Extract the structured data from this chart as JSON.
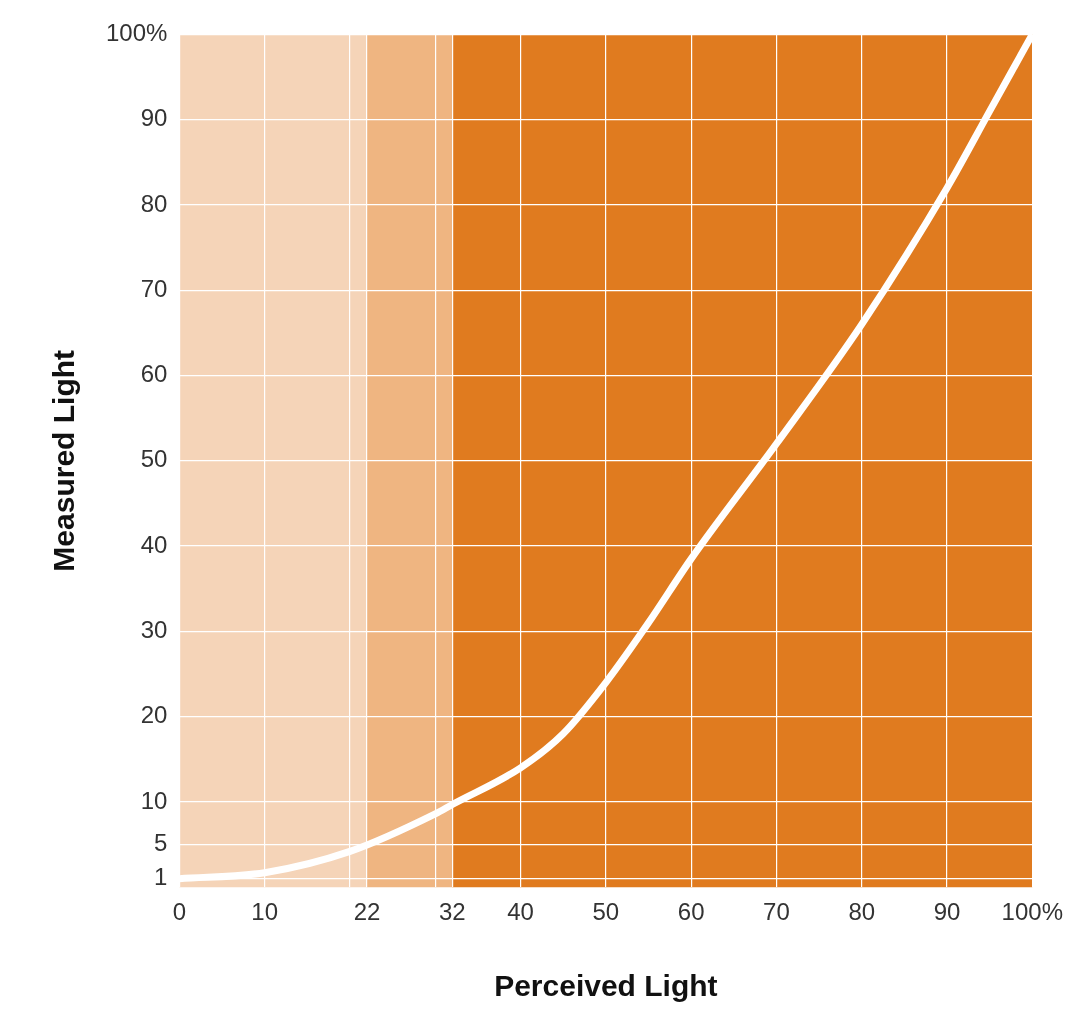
{
  "chart_data": {
    "type": "line",
    "xlabel": "Perceived Light",
    "ylabel": "Measured Light",
    "x": [
      0,
      10,
      20,
      30,
      32,
      40,
      45,
      50,
      55,
      60,
      70,
      80,
      90,
      95,
      100
    ],
    "series": [
      {
        "color": "#ffffff",
        "values": [
          1,
          1.7,
          4.2,
          8.6,
          9.7,
          14,
          18,
          24,
          31,
          38.5,
          52,
          66,
          82,
          91,
          100
        ]
      }
    ],
    "xlim": [
      0,
      100
    ],
    "ylim": [
      0,
      100
    ],
    "xticks": [
      0,
      10,
      {
        "value": 20,
        "label": null
      },
      22,
      {
        "value": 30,
        "label": null
      },
      32,
      40,
      50,
      60,
      70,
      80,
      90,
      {
        "value": 100,
        "label": "100%"
      }
    ],
    "yticks": [
      1,
      5,
      10,
      20,
      30,
      40,
      50,
      60,
      70,
      80,
      90,
      {
        "value": 100,
        "label": "100%"
      }
    ],
    "bands": [
      {
        "axis": "x",
        "from": 0,
        "to": 22,
        "color": "#f5d4b8"
      },
      {
        "axis": "x",
        "from": 22,
        "to": 32,
        "color": "#efb581"
      },
      {
        "axis": "x",
        "from": 32,
        "to": 100,
        "color": "#e07b1f"
      }
    ],
    "grid": true,
    "legend": false,
    "marker": "none",
    "line_style": "solid"
  }
}
